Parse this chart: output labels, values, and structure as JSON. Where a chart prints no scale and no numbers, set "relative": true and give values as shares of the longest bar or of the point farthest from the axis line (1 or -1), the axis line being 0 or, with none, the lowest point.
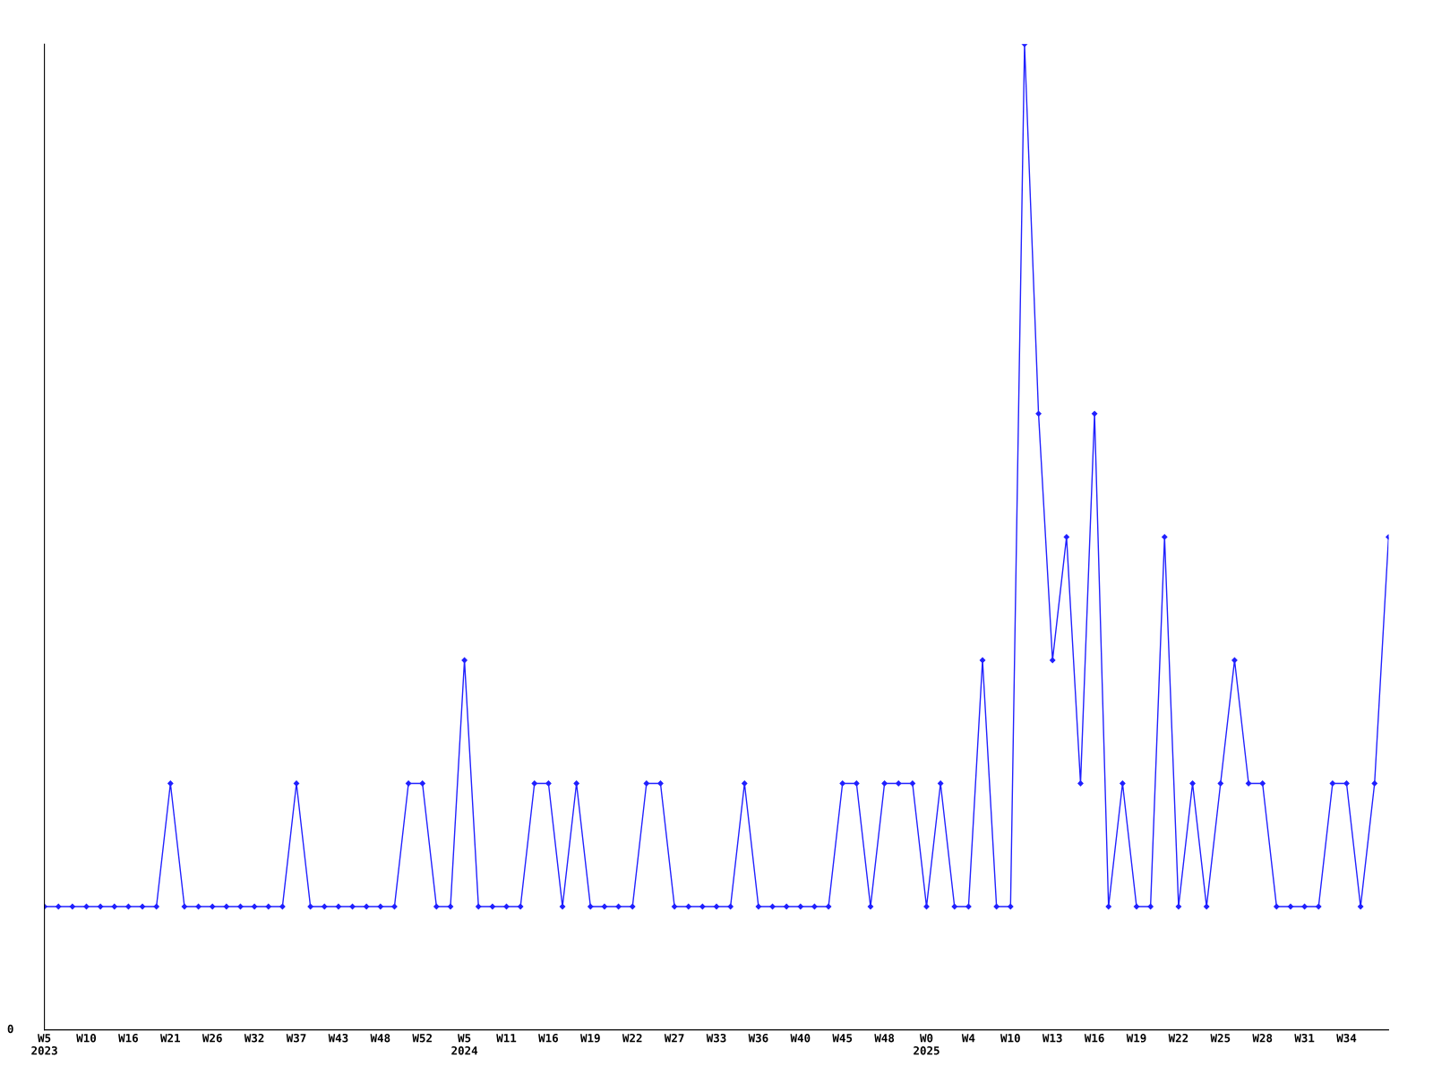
{
  "chart_data": {
    "type": "line",
    "relative": true,
    "categories": [
      "W5\n2023",
      null,
      null,
      "W10",
      null,
      null,
      "W16",
      null,
      null,
      "W21",
      null,
      null,
      "W26",
      null,
      null,
      "W32",
      null,
      null,
      "W37",
      null,
      null,
      "W43",
      null,
      null,
      "W48",
      null,
      null,
      "W52",
      null,
      null,
      "W5\n2024",
      null,
      null,
      "W11",
      null,
      null,
      "W16",
      null,
      null,
      "W19",
      null,
      null,
      "W22",
      null,
      null,
      "W27",
      null,
      null,
      "W33",
      null,
      null,
      "W36",
      null,
      null,
      "W40",
      null,
      null,
      "W45",
      null,
      null,
      "W48",
      null,
      null,
      "W0\n2025",
      null,
      null,
      "W4",
      null,
      null,
      "W10",
      null,
      null,
      "W13",
      null,
      null,
      "W16",
      null,
      null,
      "W19",
      null,
      null,
      "W22",
      null,
      null,
      "W25",
      null,
      null,
      "W28",
      null,
      null,
      "W31",
      null,
      null,
      "W34",
      null,
      null,
      null
    ],
    "series": [
      {
        "color": "#2020ff",
        "values": [
          0.125,
          0.125,
          0.125,
          0.125,
          0.125,
          0.125,
          0.125,
          0.125,
          0.125,
          0.25,
          0.125,
          0.125,
          0.125,
          0.125,
          0.125,
          0.125,
          0.125,
          0.125,
          0.25,
          0.125,
          0.125,
          0.125,
          0.125,
          0.125,
          0.125,
          0.125,
          0.25,
          0.25,
          0.125,
          0.125,
          0.375,
          0.125,
          0.125,
          0.125,
          0.125,
          0.25,
          0.25,
          0.125,
          0.25,
          0.125,
          0.125,
          0.125,
          0.125,
          0.25,
          0.25,
          0.125,
          0.125,
          0.125,
          0.125,
          0.125,
          0.25,
          0.125,
          0.125,
          0.125,
          0.125,
          0.125,
          0.125,
          0.25,
          0.25,
          0.125,
          0.25,
          0.25,
          0.25,
          0.125,
          0.25,
          0.125,
          0.125,
          0.375,
          0.125,
          0.125,
          1,
          0.625,
          0.375,
          0.5,
          0.25,
          0.625,
          0.125,
          0.25,
          0.125,
          0.125,
          0.5,
          0.125,
          0.25,
          0.125,
          0.25,
          0.375,
          0.25,
          0.25,
          0.125,
          0.125,
          0.125,
          0.125,
          0.25,
          0.25,
          0.125,
          0.25,
          0.5
        ]
      }
    ],
    "marker": "diamond",
    "line_style": "solid",
    "grid": false,
    "legend": false,
    "annotations": [
      "0"
    ]
  }
}
